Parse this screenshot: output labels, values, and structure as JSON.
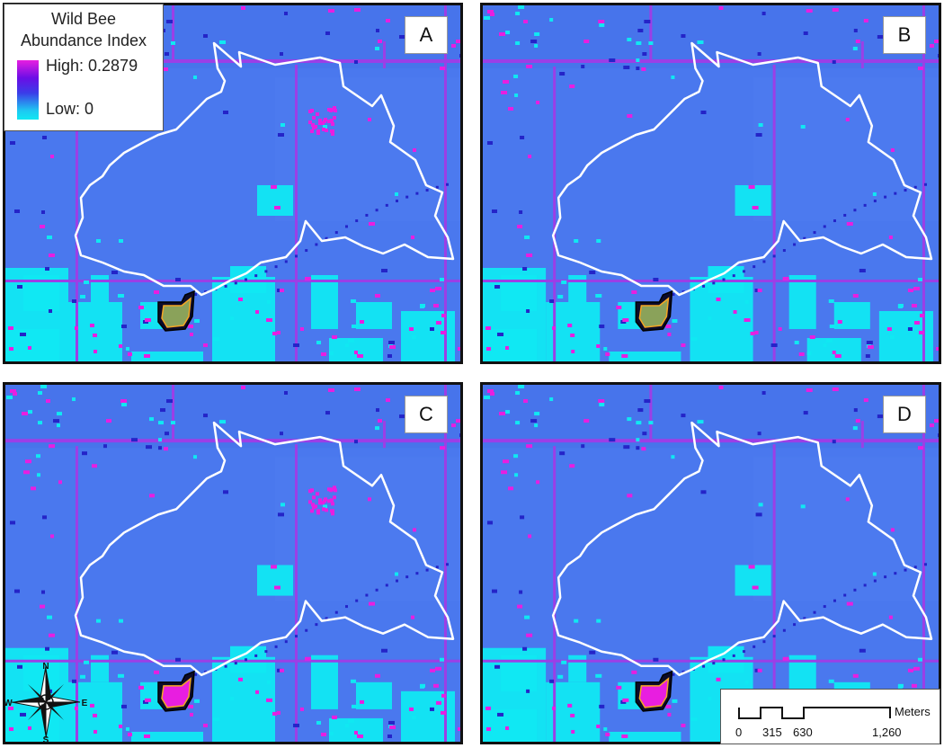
{
  "figure": {
    "panels": [
      {
        "label": "A",
        "field": "low"
      },
      {
        "label": "B",
        "field": "low"
      },
      {
        "label": "C",
        "field": "high"
      },
      {
        "label": "D",
        "field": "high"
      }
    ]
  },
  "legend": {
    "title_line1": "Wild Bee",
    "title_line2": "Abundance Index",
    "high": "High: 0.2879",
    "low": "Low: 0",
    "colors": {
      "high": "#e81ee0",
      "mid": "#3b3ce8",
      "low": "#10e8f2"
    }
  },
  "scalebar": {
    "labels": [
      "0",
      "315",
      "630",
      "1,260"
    ],
    "unit": "Meters"
  },
  "compass": {
    "n": "N",
    "s": "S",
    "e": "E",
    "w": "W"
  },
  "colors": {
    "background_blue": "#4a78ee",
    "road_purple": "#9b3fe6",
    "boundary": "#ffffff",
    "cyan": "#10e8f2",
    "magenta": "#e81ee0",
    "dark_blue": "#2424c8"
  }
}
